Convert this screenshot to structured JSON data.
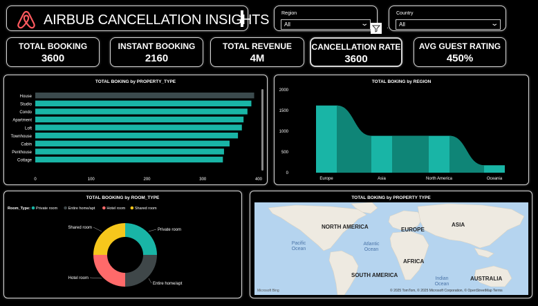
{
  "header": {
    "title": "AIRBUB CANCELLATION INSIGHTS",
    "region_slicer": {
      "label": "Region",
      "value": "All"
    },
    "country_slicer": {
      "label": "Country",
      "value": "All"
    },
    "extra_controls": "· ·"
  },
  "kpis": [
    {
      "label": "TOTAL BOOKING",
      "value": "3600"
    },
    {
      "label": "INSTANT BOOKING",
      "value": "2160"
    },
    {
      "label": "TOTAL REVENUE",
      "value": "4M"
    },
    {
      "label": "CANCELLATION RATE",
      "value": "3600"
    },
    {
      "label": "AVG GUEST RATING",
      "value": "450%"
    }
  ],
  "colors": {
    "teal": "#19b5a6",
    "dark_teal": "#0f8577",
    "dark_bar": "#3b4a4d",
    "charcoal": "#3f4749",
    "salmon": "#ff6a6a",
    "yellow": "#f6c71c",
    "map_water": "#b5d4ef",
    "map_land": "#eeeae1"
  },
  "chart_data": [
    {
      "type": "bar",
      "orientation": "horizontal",
      "title": "TOTAL BOKING by PROPERTY_TYPE",
      "categories": [
        "House",
        "Studio",
        "Condo",
        "Apartment",
        "Loft",
        "Townhouse",
        "Cabin",
        "Penthouse",
        "Cottage"
      ],
      "values": [
        392,
        387,
        380,
        373,
        370,
        363,
        348,
        338,
        336
      ],
      "xticks": [
        "0",
        "100",
        "200",
        "300",
        "400"
      ],
      "xlim": [
        0,
        400
      ]
    },
    {
      "type": "area",
      "title": "TOTAL BOKING by REGION",
      "categories": [
        "Europe",
        "Asia",
        "North America",
        "Oceania"
      ],
      "values": [
        1620,
        890,
        890,
        180
      ],
      "yticks": [
        "0",
        "500",
        "1000",
        "1500",
        "2000"
      ],
      "ylim": [
        0,
        2000
      ]
    },
    {
      "type": "pie",
      "title": "TOTAL BOOKING by ROOM_TYPE",
      "legend_title": "Room_Type",
      "slices": [
        {
          "label": "Private room",
          "value": 900
        },
        {
          "label": "Entire home/apt",
          "value": 900
        },
        {
          "label": "Hotel room",
          "value": 900
        },
        {
          "label": "Shared room",
          "value": 900
        }
      ]
    }
  ],
  "map": {
    "title": "TOTAL BOKING by PROPERTY TYPE",
    "continents": [
      "NORTH AMERICA",
      "EUROPE",
      "ASIA",
      "AFRICA",
      "SOUTH AMERICA",
      "AUSTRALIA"
    ],
    "oceans": [
      "Pacific Ocean",
      "Atlantic Ocean",
      "Indian Ocean"
    ],
    "brand": "Microsoft Bing",
    "credit": "© 2025 TomTom, © 2025 Microsoft Corporation, © OpenStreetMap  Terms"
  }
}
